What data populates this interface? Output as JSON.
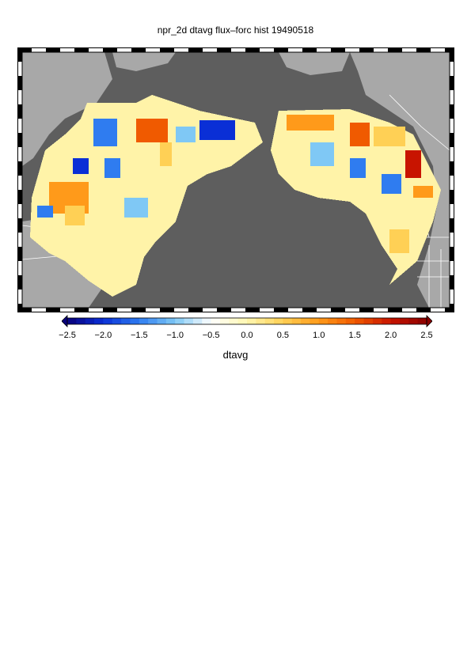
{
  "title": "npr_2d dtavg flux–forc hist 19490518",
  "colorbar": {
    "label": "dtavg",
    "ticks": [
      "−2.5",
      "−2.0",
      "−1.5",
      "−1.0",
      "−0.5",
      "0.0",
      "0.5",
      "1.0",
      "1.5",
      "2.0",
      "2.5"
    ],
    "range": [
      -2.5,
      2.5
    ],
    "colors": [
      "#08007a",
      "#0a2fd6",
      "#2f7cf0",
      "#7fc8f5",
      "#ffffff",
      "#fff7b0",
      "#ffd055",
      "#ff9a1a",
      "#f05a00",
      "#c81400",
      "#8a0000"
    ]
  },
  "map": {
    "ocean_color": "#5e5e5e",
    "land_masked_color": "#a8a8a8",
    "border_color": "#ffffff"
  }
}
